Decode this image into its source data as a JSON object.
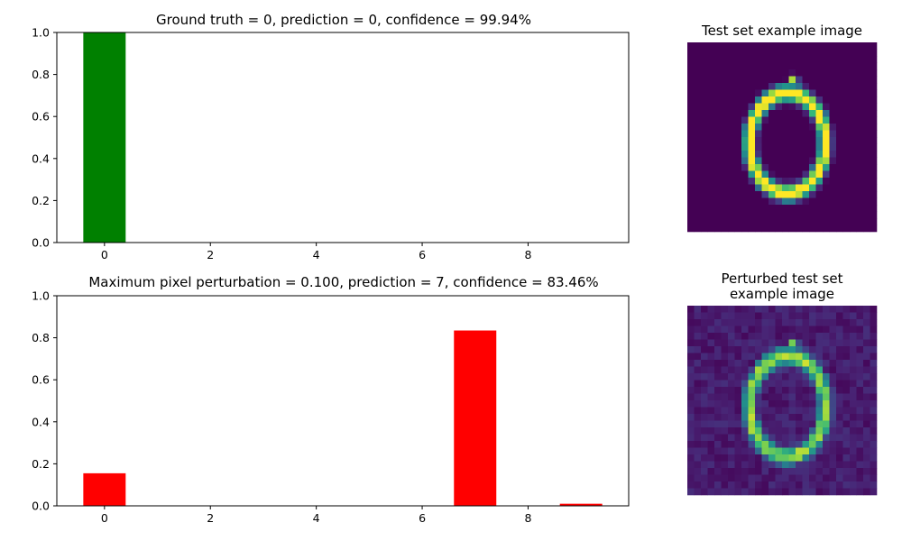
{
  "chart_data": [
    {
      "type": "bar",
      "title": "Ground truth = 0, prediction = 0, confidence = 99.94%",
      "xlabel": "",
      "ylabel": "",
      "xlim": [
        -0.9,
        9.9
      ],
      "ylim": [
        0,
        1.0
      ],
      "x_ticks": [
        0,
        2,
        4,
        6,
        8
      ],
      "y_ticks": [
        0.0,
        0.2,
        0.4,
        0.6,
        0.8,
        1.0
      ],
      "x_tick_labels": [
        "0",
        "2",
        "4",
        "6",
        "8"
      ],
      "y_tick_labels": [
        "0.0",
        "0.2",
        "0.4",
        "0.6",
        "0.8",
        "1.0"
      ],
      "categories": [
        0,
        1,
        2,
        3,
        4,
        5,
        6,
        7,
        8,
        9
      ],
      "values": [
        0.9994,
        0.0,
        0.0,
        0.0,
        0.0,
        0.0,
        0.0,
        0.0,
        0.0,
        0.0
      ],
      "bar_color": "#008000"
    },
    {
      "type": "bar",
      "title": "Maximum pixel perturbation = 0.100, prediction = 7, confidence = 83.46%",
      "xlabel": "",
      "ylabel": "",
      "xlim": [
        -0.9,
        9.9
      ],
      "ylim": [
        0,
        1.0
      ],
      "x_ticks": [
        0,
        2,
        4,
        6,
        8
      ],
      "y_ticks": [
        0.0,
        0.2,
        0.4,
        0.6,
        0.8,
        1.0
      ],
      "x_tick_labels": [
        "0",
        "2",
        "4",
        "6",
        "8"
      ],
      "y_tick_labels": [
        "0.0",
        "0.2",
        "0.4",
        "0.6",
        "0.8",
        "1.0"
      ],
      "categories": [
        0,
        1,
        2,
        3,
        4,
        5,
        6,
        7,
        8,
        9
      ],
      "values": [
        0.155,
        0.0,
        0.0,
        0.0,
        0.0,
        0.0,
        0.0,
        0.8346,
        0.0,
        0.01
      ],
      "bar_color": "#ff0000"
    }
  ],
  "images": {
    "test_image": {
      "title": "Test set example image"
    },
    "perturbed_image": {
      "title_lines": [
        "Perturbed test set",
        "example image"
      ]
    }
  },
  "colors": {
    "viridis_dark": "#440154",
    "viridis_yellow": "#fde725",
    "perturbed_background": "#46337e"
  }
}
